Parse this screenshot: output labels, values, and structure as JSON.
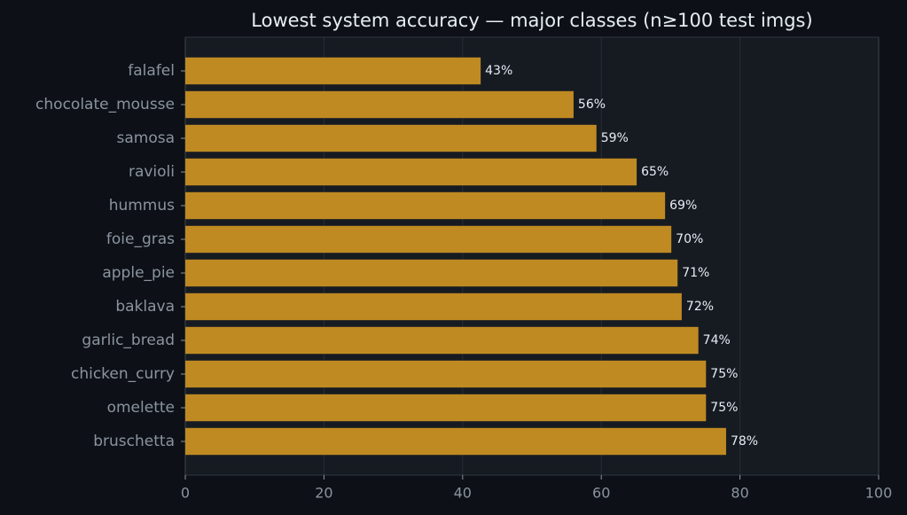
{
  "chart_data": {
    "type": "barh",
    "title": "Lowest system accuracy — major classes (n≥100 test imgs)",
    "categories": [
      "falafel",
      "chocolate_mousse",
      "samosa",
      "ravioli",
      "hummus",
      "foie_gras",
      "apple_pie",
      "baklava",
      "garlic_bread",
      "chicken_curry",
      "omelette",
      "bruschetta"
    ],
    "values": [
      42.6,
      56.0,
      59.3,
      65.1,
      69.2,
      70.1,
      71.0,
      71.6,
      74.0,
      75.1,
      75.1,
      78.0
    ],
    "value_labels": [
      "43%",
      "56%",
      "59%",
      "65%",
      "69%",
      "70%",
      "71%",
      "72%",
      "74%",
      "75%",
      "75%",
      "78%"
    ],
    "color": "#bf8a22",
    "xlim": [
      0,
      100
    ],
    "xticks": [
      0,
      20,
      40,
      60,
      80,
      100
    ],
    "grid": true
  }
}
